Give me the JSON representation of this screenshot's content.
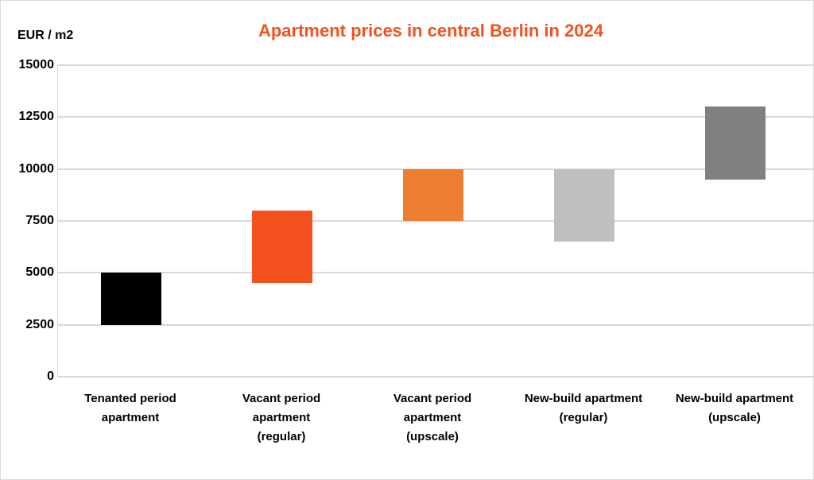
{
  "chart_data": {
    "type": "bar",
    "subtype": "floating-range",
    "title": "Apartment prices in central Berlin in 2024",
    "xlabel": "",
    "ylabel": "EUR / m2",
    "ylim": [
      0,
      15000
    ],
    "yticks": [
      "0",
      "2500",
      "5000",
      "7500",
      "10000",
      "12500",
      "15000"
    ],
    "grid": true,
    "legend": null,
    "categories": [
      "Tenanted period\napartment",
      "Vacant period\napartment\n(regular)",
      "Vacant period\napartment\n(upscale)",
      "New-build apartment\n(regular)",
      "New-build apartment\n(upscale)"
    ],
    "series": [
      {
        "name": "low",
        "values": [
          2500,
          4500,
          7500,
          6500,
          9500
        ]
      },
      {
        "name": "high",
        "values": [
          5000,
          8000,
          10000,
          10000,
          13000
        ]
      }
    ],
    "colors": [
      "#000000",
      "#f4511e",
      "#ed7d31",
      "#bfbfbf",
      "#808080"
    ]
  },
  "labels": {
    "title": "Apartment prices in central Berlin in 2024",
    "ylabel": "EUR / m2",
    "yticks": [
      "15000",
      "12500",
      "10000",
      "7500",
      "5000",
      "2500",
      "0"
    ],
    "xticks": [
      "Tenanted period\napartment",
      "Vacant period\napartment\n(regular)",
      "Vacant period\napartment\n(upscale)",
      "New-build apartment\n(regular)",
      "New-build apartment\n(upscale)"
    ]
  },
  "colors": {
    "title": "#f4511e",
    "grid": "#d9d9d9"
  }
}
